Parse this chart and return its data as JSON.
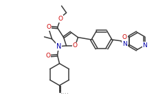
{
  "background": "#ffffff",
  "line_color": "#3a3a3a",
  "line_width": 1.1,
  "figsize": [
    2.28,
    1.55
  ],
  "dpi": 100,
  "xlim": [
    0,
    228
  ],
  "ylim": [
    0,
    155
  ],
  "atom_color_N": "#0000aa",
  "atom_color_O": "#cc0000"
}
